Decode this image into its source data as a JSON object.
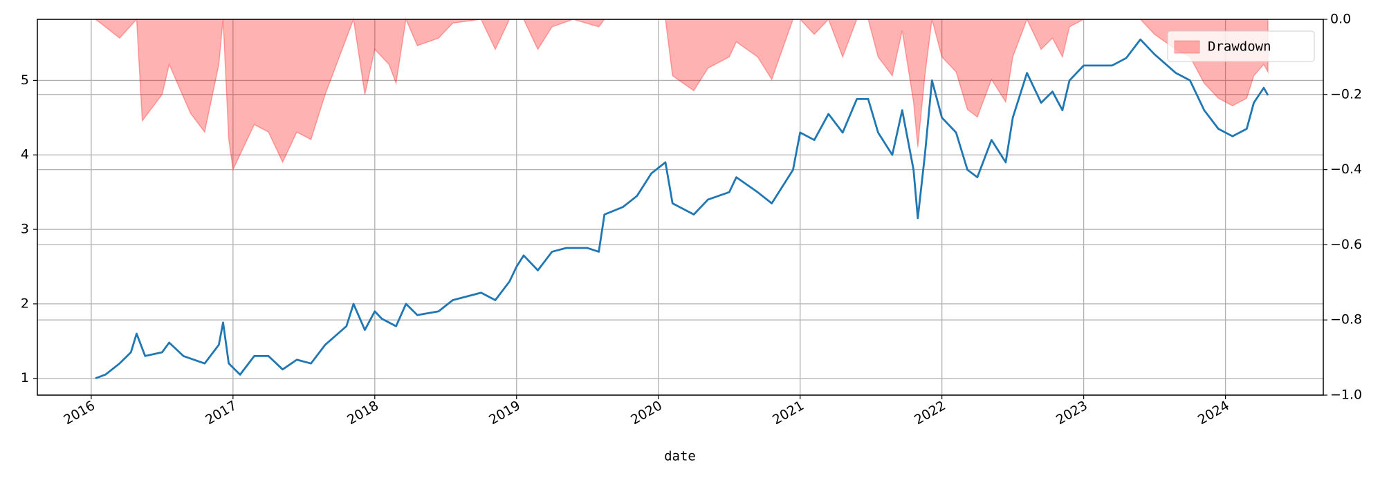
{
  "chart_data": {
    "type": "line",
    "x_label": "date",
    "grid": true,
    "legend": "upper right",
    "xlim": [
      2015.62,
      2024.69
    ],
    "xticks": [
      2016,
      2017,
      2018,
      2019,
      2020,
      2021,
      2022,
      2023,
      2024
    ],
    "ylim": [
      0.775,
      5.82
    ],
    "yticks": [
      1,
      2,
      3,
      4,
      5
    ],
    "y2lim": [
      -1,
      0
    ],
    "y2ticks": [
      {
        "value": 0,
        "label": "0.0"
      },
      {
        "value": -0.2,
        "label": "−0.2"
      },
      {
        "value": -0.4,
        "label": "−0.4"
      },
      {
        "value": -0.6,
        "label": "−0.6"
      },
      {
        "value": -0.8,
        "label": "−0.8"
      },
      {
        "value": -1,
        "label": "−1.0"
      }
    ],
    "series": [
      {
        "type": "line",
        "color": "#1f77b4",
        "x": [
          2016.03,
          2016.1,
          2016.2,
          2016.28,
          2016.32,
          2016.38,
          2016.5,
          2016.55,
          2016.65,
          2016.8,
          2016.9,
          2016.93,
          2016.97,
          2017.05,
          2017.15,
          2017.25,
          2017.35,
          2017.45,
          2017.55,
          2017.65,
          2017.8,
          2017.85,
          2017.93,
          2018.0,
          2018.05,
          2018.15,
          2018.22,
          2018.3,
          2018.45,
          2018.55,
          2018.75,
          2018.85,
          2018.95,
          2019.0,
          2019.05,
          2019.15,
          2019.25,
          2019.35,
          2019.5,
          2019.58,
          2019.62,
          2019.75,
          2019.85,
          2019.95,
          2020.05,
          2020.1,
          2020.25,
          2020.35,
          2020.5,
          2020.55,
          2020.7,
          2020.8,
          2020.95,
          2021.0,
          2021.1,
          2021.2,
          2021.3,
          2021.4,
          2021.48,
          2021.55,
          2021.65,
          2021.72,
          2021.8,
          2021.83,
          2021.88,
          2021.93,
          2022.0,
          2022.1,
          2022.18,
          2022.25,
          2022.35,
          2022.45,
          2022.5,
          2022.6,
          2022.7,
          2022.78,
          2022.85,
          2022.9,
          2023.0,
          2023.2,
          2023.3,
          2023.4,
          2023.5,
          2023.65,
          2023.75,
          2023.85,
          2023.95,
          2024.05,
          2024.15,
          2024.2,
          2024.27,
          2024.3
        ],
        "values": [
          1.0,
          1.05,
          1.2,
          1.35,
          1.6,
          1.3,
          1.35,
          1.48,
          1.3,
          1.2,
          1.45,
          1.75,
          1.2,
          1.05,
          1.3,
          1.3,
          1.12,
          1.25,
          1.2,
          1.45,
          1.7,
          2.0,
          1.65,
          1.9,
          1.8,
          1.7,
          2.0,
          1.85,
          1.9,
          2.05,
          2.15,
          2.05,
          2.3,
          2.5,
          2.65,
          2.45,
          2.7,
          2.75,
          2.75,
          2.7,
          3.2,
          3.3,
          3.45,
          3.75,
          3.9,
          3.35,
          3.2,
          3.4,
          3.5,
          3.7,
          3.5,
          3.35,
          3.8,
          4.3,
          4.2,
          4.55,
          4.3,
          4.75,
          4.75,
          4.3,
          4.0,
          4.6,
          3.8,
          3.15,
          4.0,
          5.0,
          4.5,
          4.3,
          3.8,
          3.7,
          4.2,
          3.9,
          4.5,
          5.1,
          4.7,
          4.85,
          4.6,
          5.0,
          5.2,
          5.2,
          5.3,
          5.55,
          5.35,
          5.1,
          5.0,
          4.6,
          4.35,
          4.25,
          4.35,
          4.7,
          4.9,
          4.8
        ]
      },
      {
        "type": "area",
        "name": "Drawdown",
        "axis": "y2",
        "color": "#ff0000",
        "x": [
          2016.03,
          2016.1,
          2016.2,
          2016.32,
          2016.36,
          2016.5,
          2016.55,
          2016.7,
          2016.8,
          2016.9,
          2016.93,
          2016.97,
          2017.0,
          2017.15,
          2017.25,
          2017.35,
          2017.45,
          2017.55,
          2017.65,
          2017.8,
          2017.85,
          2017.93,
          2018.0,
          2018.1,
          2018.15,
          2018.22,
          2018.3,
          2018.45,
          2018.55,
          2018.75,
          2018.85,
          2018.95,
          2019.05,
          2019.15,
          2019.25,
          2019.4,
          2019.58,
          2019.62,
          2020.05,
          2020.1,
          2020.25,
          2020.35,
          2020.5,
          2020.55,
          2020.7,
          2020.8,
          2020.95,
          2021.0,
          2021.1,
          2021.2,
          2021.3,
          2021.4,
          2021.48,
          2021.55,
          2021.65,
          2021.72,
          2021.8,
          2021.83,
          2021.88,
          2021.93,
          2022.0,
          2022.1,
          2022.18,
          2022.25,
          2022.35,
          2022.45,
          2022.5,
          2022.6,
          2022.7,
          2022.78,
          2022.85,
          2022.9,
          2023.0,
          2023.2,
          2023.3,
          2023.4,
          2023.5,
          2023.65,
          2023.75,
          2023.85,
          2023.95,
          2024.05,
          2024.15,
          2024.2,
          2024.27,
          2024.3
        ],
        "values": [
          0,
          -0.02,
          -0.05,
          0,
          -0.27,
          -0.2,
          -0.12,
          -0.25,
          -0.3,
          -0.12,
          0,
          -0.32,
          -0.4,
          -0.28,
          -0.3,
          -0.38,
          -0.3,
          -0.32,
          -0.2,
          -0.05,
          0,
          -0.2,
          -0.08,
          -0.12,
          -0.17,
          0,
          -0.07,
          -0.05,
          -0.01,
          0,
          -0.08,
          0,
          0,
          -0.08,
          -0.02,
          0,
          -0.02,
          0,
          0,
          -0.15,
          -0.19,
          -0.13,
          -0.1,
          -0.06,
          -0.1,
          -0.16,
          0,
          0,
          -0.04,
          0,
          -0.1,
          0,
          0,
          -0.1,
          -0.15,
          -0.03,
          -0.22,
          -0.34,
          -0.15,
          0,
          -0.1,
          -0.14,
          -0.24,
          -0.26,
          -0.16,
          -0.22,
          -0.1,
          0,
          -0.08,
          -0.05,
          -0.1,
          -0.02,
          0,
          0,
          0,
          0,
          -0.04,
          -0.08,
          -0.1,
          -0.17,
          -0.21,
          -0.23,
          -0.21,
          -0.15,
          -0.12,
          -0.14
        ]
      }
    ]
  }
}
